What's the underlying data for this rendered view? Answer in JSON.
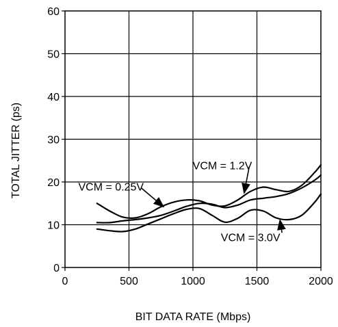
{
  "chart_data": {
    "type": "line",
    "title": "",
    "xlabel": "BIT DATA RATE (Mbps)",
    "ylabel": "TOTAL JITTER (ps)",
    "xlim": [
      0,
      2000
    ],
    "ylim": [
      0,
      60
    ],
    "x_ticks": [
      0,
      500,
      1000,
      1500,
      2000
    ],
    "y_ticks": [
      0,
      10,
      20,
      30,
      40,
      50,
      60
    ],
    "x_tick_labels": [
      "0",
      "500",
      "1000",
      "1500",
      "2000"
    ],
    "y_tick_labels": [
      "0",
      "10",
      "20",
      "30",
      "40",
      "50",
      "60"
    ],
    "grid": true,
    "legend": "none",
    "line_color": "#000000",
    "series": [
      {
        "name": "VCM = 0.25V",
        "x": [
          250,
          350,
          450,
          550,
          650,
          750,
          850,
          950,
          1050,
          1150,
          1250,
          1350,
          1450,
          1550,
          1650,
          1750,
          1850,
          1950,
          2000
        ],
        "y": [
          15.0,
          13.2,
          11.8,
          11.6,
          12.6,
          14.2,
          15.3,
          15.8,
          15.6,
          14.6,
          14.4,
          15.8,
          17.8,
          18.8,
          18.2,
          17.8,
          19.2,
          22.2,
          24.0
        ]
      },
      {
        "name": "VCM = 1.2V",
        "x": [
          250,
          350,
          450,
          550,
          650,
          750,
          850,
          950,
          1050,
          1150,
          1250,
          1350,
          1450,
          1550,
          1650,
          1750,
          1850,
          1950,
          2000
        ],
        "y": [
          10.5,
          10.5,
          10.9,
          11.2,
          11.6,
          12.2,
          13.2,
          14.3,
          15.0,
          14.8,
          14.0,
          14.6,
          15.8,
          16.2,
          16.6,
          17.3,
          18.6,
          20.4,
          21.6
        ]
      },
      {
        "name": "VCM = 3.0V",
        "x": [
          250,
          350,
          450,
          550,
          650,
          750,
          850,
          950,
          1050,
          1150,
          1250,
          1350,
          1450,
          1550,
          1650,
          1750,
          1850,
          1950,
          2000
        ],
        "y": [
          9.0,
          8.6,
          8.4,
          9.0,
          10.2,
          11.4,
          12.6,
          13.6,
          13.8,
          12.2,
          10.6,
          11.5,
          13.4,
          13.2,
          11.6,
          11.2,
          12.2,
          15.2,
          17.2
        ]
      }
    ],
    "annotations": [
      {
        "text": "VCM = 0.25V",
        "series": "VCM = 0.25V",
        "label_x": 360,
        "label_y": 18.0,
        "arrow_to_x": 770,
        "arrow_to_y": 14.2
      },
      {
        "text": "VCM = 1.2V",
        "series": "VCM = 1.2V",
        "label_x": 1230,
        "label_y": 23.0,
        "arrow_to_x": 1400,
        "arrow_to_y": 17.4
      },
      {
        "text": "VCM = 3.0V",
        "series": "VCM = 3.0V",
        "label_x": 1450,
        "label_y": 6.2,
        "arrow_to_x": 1680,
        "arrow_to_y": 11.1
      }
    ]
  }
}
